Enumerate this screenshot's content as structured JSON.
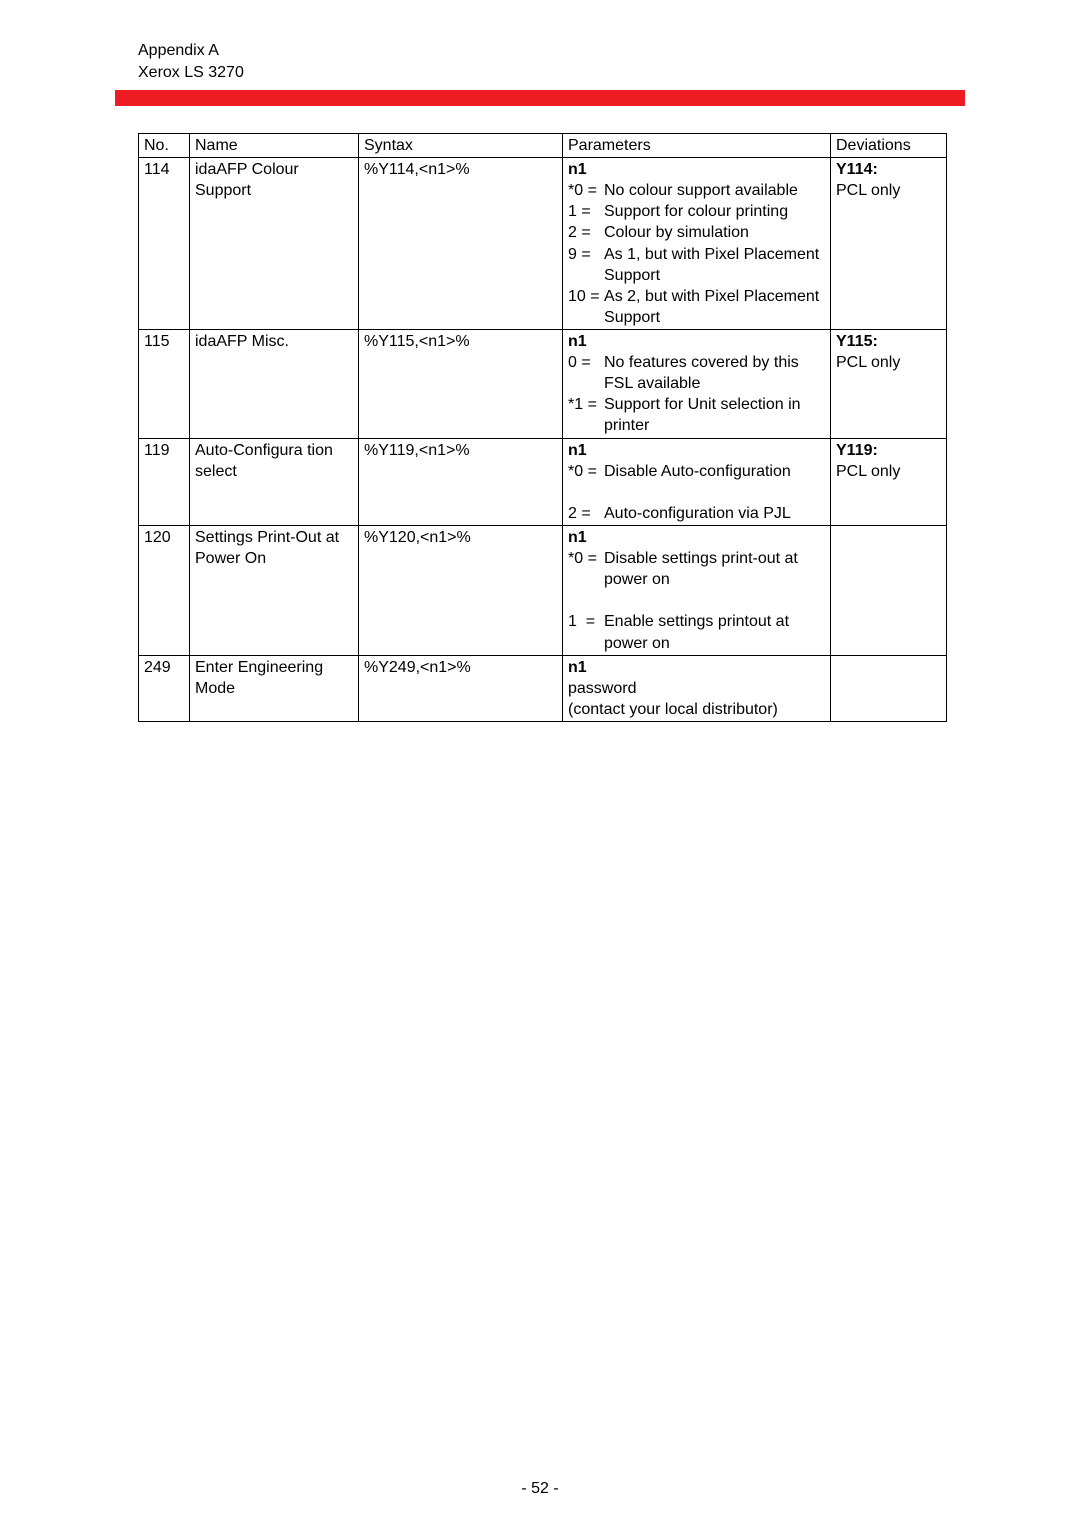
{
  "header": {
    "line1": "Appendix A",
    "line2": "Xerox LS 3270"
  },
  "columns": {
    "no": "No.",
    "name": "Name",
    "syntax": "Syntax",
    "parameters": "Parameters",
    "deviations": "Deviations"
  },
  "rows": [
    {
      "no": "114",
      "name": "idaAFP Colour Support",
      "syntax": "%Y114,<n1>%",
      "param_header": "n1",
      "params": [
        {
          "code": "*0 =",
          "text": "No colour support available"
        },
        {
          "code": "1 =",
          "text": "Support for colour printing"
        },
        {
          "code": "2 =",
          "text": "Colour by simulation"
        },
        {
          "code": "9 =",
          "text": "As 1, but with Pixel Placement Support"
        },
        {
          "code": "10 =",
          "text": "As 2, but with Pixel Placement Support"
        }
      ],
      "dev_bold": "Y114:",
      "dev_text": "PCL only"
    },
    {
      "no": "115",
      "name": "idaAFP Misc.",
      "syntax": "%Y115,<n1>%",
      "param_header": "n1",
      "params": [
        {
          "code": "0 =",
          "text": "No features covered by this FSL available"
        },
        {
          "code": "*1 =",
          "text": "Support for Unit selection in printer"
        }
      ],
      "dev_bold": "Y115:",
      "dev_text": "PCL only"
    },
    {
      "no": "119",
      "name": "Auto-Configura tion select",
      "syntax": "%Y119,<n1>%",
      "param_header": "n1",
      "params": [
        {
          "code": "*0 =",
          "text": "Disable Auto-configuration"
        },
        {
          "code": "",
          "text": ""
        },
        {
          "code": "2 =",
          "text": "Auto-configuration via PJL"
        }
      ],
      "dev_bold": "Y119:",
      "dev_text": "PCL only"
    },
    {
      "no": "120",
      "name": "Settings Print-Out at Power On",
      "syntax": "%Y120,<n1>%",
      "param_header": "n1",
      "params": [
        {
          "code": "*0 =",
          "text": "Disable settings print-out at power on"
        },
        {
          "code": "",
          "text": ""
        },
        {
          "code": "1  =",
          "text": "Enable settings printout at power on"
        }
      ],
      "dev_bold": "",
      "dev_text": ""
    },
    {
      "no": "249",
      "name": "Enter Engineering Mode",
      "syntax": "%Y249,<n1>%",
      "param_header": "n1",
      "param_plain": "password\n(contact your local distributor)",
      "dev_bold": "",
      "dev_text": ""
    }
  ],
  "page_number": "- 52 -"
}
